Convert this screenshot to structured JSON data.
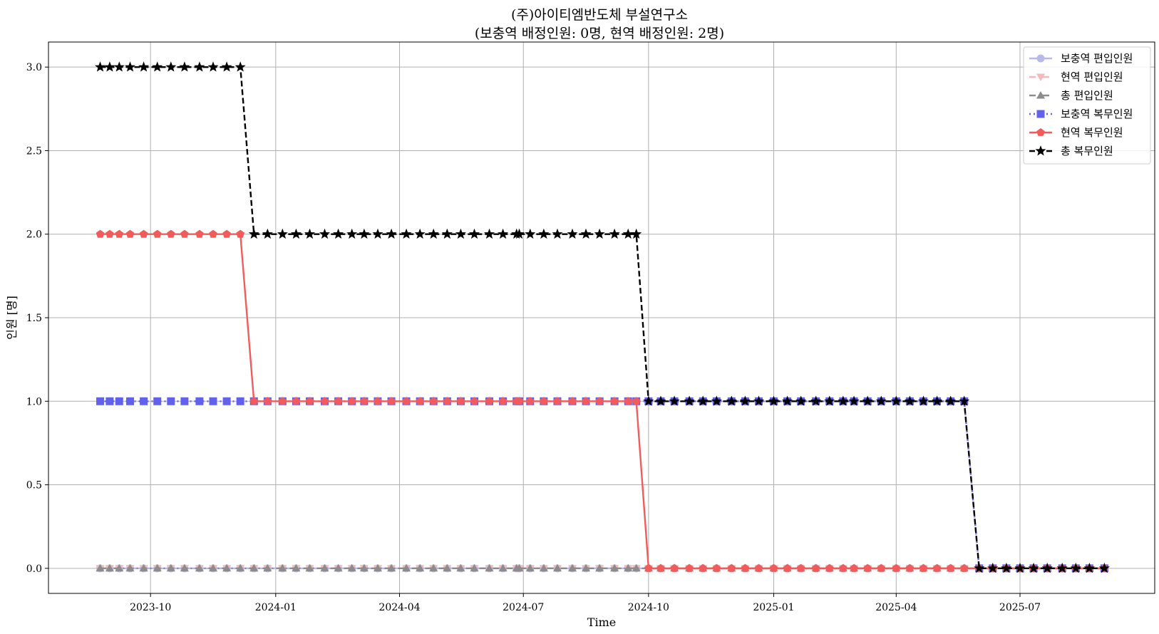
{
  "chart_data": {
    "type": "line",
    "title": "(주)아이티엠반도체 부설연구소",
    "subtitle": "(보충역 배정인원: 0명, 현역 배정인원: 2명)",
    "xlabel": "Time",
    "ylabel": "인원 [명]",
    "x_ticks": [
      "2023-10",
      "2024-01",
      "2024-04",
      "2024-07",
      "2024-10",
      "2025-01",
      "2025-04",
      "2025-07"
    ],
    "y_ticks": [
      "0.0",
      "0.5",
      "1.0",
      "1.5",
      "2.0",
      "2.5",
      "3.0"
    ],
    "xlim": [
      "2023-07-18",
      "2025-10-08"
    ],
    "ylim": [
      -0.15,
      3.15
    ],
    "grid": true,
    "legend_position": "top-right",
    "x": [
      "2023-08-25",
      "2023-09-01",
      "2023-09-08",
      "2023-09-16",
      "2023-09-26",
      "2023-10-06",
      "2023-10-16",
      "2023-10-26",
      "2023-11-06",
      "2023-11-16",
      "2023-11-26",
      "2023-12-06",
      "2023-12-16",
      "2023-12-26",
      "2024-01-06",
      "2024-01-16",
      "2024-01-26",
      "2024-02-06",
      "2024-02-16",
      "2024-02-26",
      "2024-03-06",
      "2024-03-16",
      "2024-03-26",
      "2024-04-06",
      "2024-04-16",
      "2024-04-26",
      "2024-05-06",
      "2024-05-16",
      "2024-05-26",
      "2024-06-06",
      "2024-06-16",
      "2024-06-26",
      "2024-06-28",
      "2024-07-06",
      "2024-07-16",
      "2024-07-26",
      "2024-08-06",
      "2024-08-16",
      "2024-08-26",
      "2024-09-06",
      "2024-09-16",
      "2024-09-22",
      "2024-10-01",
      "2024-10-10",
      "2024-10-20",
      "2024-10-31",
      "2024-11-10",
      "2024-11-20",
      "2024-12-01",
      "2024-12-11",
      "2024-12-21",
      "2025-01-01",
      "2025-01-11",
      "2025-01-21",
      "2025-02-01",
      "2025-02-11",
      "2025-02-21",
      "2025-03-01",
      "2025-03-11",
      "2025-03-21",
      "2025-04-01",
      "2025-04-11",
      "2025-04-21",
      "2025-05-01",
      "2025-05-11",
      "2025-05-21",
      "2025-06-01",
      "2025-06-11",
      "2025-06-21",
      "2025-07-01",
      "2025-07-11",
      "2025-07-21",
      "2025-08-01",
      "2025-08-11",
      "2025-08-21",
      "2025-09-01"
    ],
    "series": [
      {
        "name": "보충역 편입인원",
        "color": "#b7b9ea",
        "style": "solid",
        "marker": "circle",
        "values": [
          0,
          0,
          0,
          0,
          0,
          0,
          0,
          0,
          0,
          0,
          0,
          0,
          0,
          0,
          0,
          0,
          0,
          0,
          0,
          0,
          0,
          0,
          0,
          0,
          0,
          0,
          0,
          0,
          0,
          0,
          0,
          0,
          0,
          0,
          0,
          0,
          0,
          0,
          0,
          0,
          0,
          0,
          0,
          0,
          0,
          0,
          0,
          0,
          0,
          0,
          0,
          0,
          0,
          0,
          0,
          0,
          0,
          0,
          0,
          0,
          0,
          0,
          0,
          0,
          0,
          0,
          0,
          0,
          0,
          0,
          0,
          0,
          0,
          0,
          0,
          0
        ]
      },
      {
        "name": "현역 편입인원",
        "color": "#f4b9b9",
        "style": "dashdot",
        "marker": "triangle-down",
        "values": [
          0,
          0,
          0,
          0,
          0,
          0,
          0,
          0,
          0,
          0,
          0,
          0,
          0,
          0,
          0,
          0,
          0,
          0,
          0,
          0,
          0,
          0,
          0,
          0,
          0,
          0,
          0,
          0,
          0,
          0,
          0,
          0,
          0,
          0,
          0,
          0,
          0,
          0,
          0,
          0,
          0,
          0,
          0,
          0,
          0,
          0,
          0,
          0,
          0,
          0,
          0,
          0,
          0,
          0,
          0,
          0,
          0,
          0,
          0,
          0,
          0,
          0,
          0,
          0,
          0,
          0,
          0,
          0,
          0,
          0,
          0,
          0,
          0,
          0,
          0,
          0
        ]
      },
      {
        "name": "총 편입인원",
        "color": "#8c8c8c",
        "style": "dashdot",
        "marker": "triangle-up",
        "values": [
          0,
          0,
          0,
          0,
          0,
          0,
          0,
          0,
          0,
          0,
          0,
          0,
          0,
          0,
          0,
          0,
          0,
          0,
          0,
          0,
          0,
          0,
          0,
          0,
          0,
          0,
          0,
          0,
          0,
          0,
          0,
          0,
          0,
          0,
          0,
          0,
          0,
          0,
          0,
          0,
          0,
          0,
          0,
          0,
          0,
          0,
          0,
          0,
          0,
          0,
          0,
          0,
          0,
          0,
          0,
          0,
          0,
          0,
          0,
          0,
          0,
          0,
          0,
          0,
          0,
          0,
          0,
          0,
          0,
          0,
          0,
          0,
          0,
          0,
          0,
          0
        ]
      },
      {
        "name": "보충역 복무인원",
        "color": "#6161ec",
        "style": "dotted",
        "marker": "square",
        "values": [
          1,
          1,
          1,
          1,
          1,
          1,
          1,
          1,
          1,
          1,
          1,
          1,
          1,
          1,
          1,
          1,
          1,
          1,
          1,
          1,
          1,
          1,
          1,
          1,
          1,
          1,
          1,
          1,
          1,
          1,
          1,
          1,
          1,
          1,
          1,
          1,
          1,
          1,
          1,
          1,
          1,
          1,
          1,
          1,
          1,
          1,
          1,
          1,
          1,
          1,
          1,
          1,
          1,
          1,
          1,
          1,
          1,
          1,
          1,
          1,
          1,
          1,
          1,
          1,
          1,
          1,
          0,
          0,
          0,
          0,
          0,
          0,
          0,
          0,
          0,
          0
        ]
      },
      {
        "name": "현역 복무인원",
        "color": "#f25b5b",
        "style": "solid",
        "marker": "pentagon",
        "values": [
          2,
          2,
          2,
          2,
          2,
          2,
          2,
          2,
          2,
          2,
          2,
          2,
          1,
          1,
          1,
          1,
          1,
          1,
          1,
          1,
          1,
          1,
          1,
          1,
          1,
          1,
          1,
          1,
          1,
          1,
          1,
          1,
          1,
          1,
          1,
          1,
          1,
          1,
          1,
          1,
          1,
          1,
          0,
          0,
          0,
          0,
          0,
          0,
          0,
          0,
          0,
          0,
          0,
          0,
          0,
          0,
          0,
          0,
          0,
          0,
          0,
          0,
          0,
          0,
          0,
          0,
          0,
          0,
          0,
          0,
          0,
          0,
          0,
          0,
          0,
          0
        ]
      },
      {
        "name": "총 복무인원",
        "color": "#000000",
        "style": "dashed",
        "marker": "star",
        "values": [
          3,
          3,
          3,
          3,
          3,
          3,
          3,
          3,
          3,
          3,
          3,
          3,
          2,
          2,
          2,
          2,
          2,
          2,
          2,
          2,
          2,
          2,
          2,
          2,
          2,
          2,
          2,
          2,
          2,
          2,
          2,
          2,
          2,
          2,
          2,
          2,
          2,
          2,
          2,
          2,
          2,
          2,
          1,
          1,
          1,
          1,
          1,
          1,
          1,
          1,
          1,
          1,
          1,
          1,
          1,
          1,
          1,
          1,
          1,
          1,
          1,
          1,
          1,
          1,
          1,
          1,
          0,
          0,
          0,
          0,
          0,
          0,
          0,
          0,
          0,
          0
        ]
      }
    ]
  }
}
